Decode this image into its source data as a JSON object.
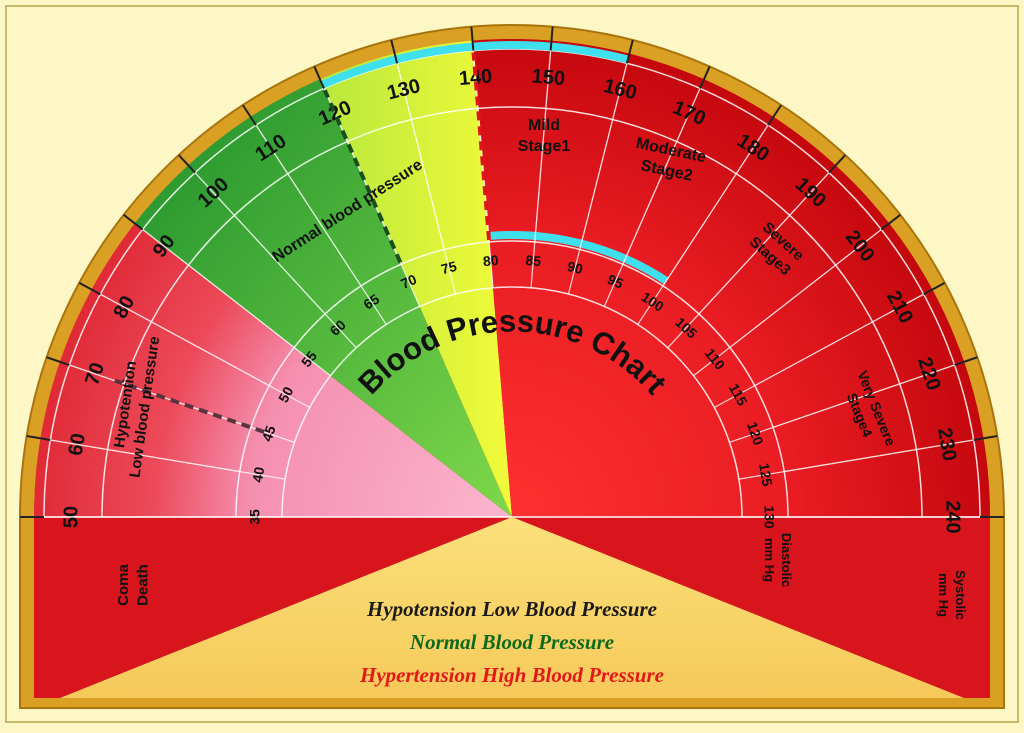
{
  "title": "Blood Pressure Chart",
  "systolic": {
    "label": [
      "Systolic",
      "mm Hg"
    ],
    "ticks": [
      50,
      60,
      70,
      80,
      90,
      100,
      110,
      120,
      130,
      140,
      150,
      160,
      170,
      180,
      190,
      200,
      210,
      220,
      230,
      240
    ]
  },
  "diastolic": {
    "label": [
      "Diastolic",
      "mm Hg"
    ],
    "ticks": [
      35,
      40,
      45,
      50,
      55,
      60,
      65,
      70,
      75,
      80,
      85,
      90,
      95,
      100,
      105,
      110,
      115,
      120,
      125,
      130
    ]
  },
  "zones": [
    {
      "lines": [
        "Coma",
        "Death"
      ]
    },
    {
      "lines": [
        "Hypotention",
        "Low blood pressure"
      ]
    },
    {
      "lines": [
        "Normal blood pressure"
      ]
    },
    {
      "lines": [
        "Mild",
        "Stage1"
      ]
    },
    {
      "lines": [
        "Moderate",
        "Stage2"
      ]
    },
    {
      "lines": [
        "Severe",
        "Stage3"
      ]
    },
    {
      "lines": [
        "Very Severe",
        "Stage4"
      ]
    }
  ],
  "legend": [
    "Hypotension Low Blood Pressure",
    "Normal Blood Pressure",
    "Hypertension High Blood Pressure"
  ]
}
